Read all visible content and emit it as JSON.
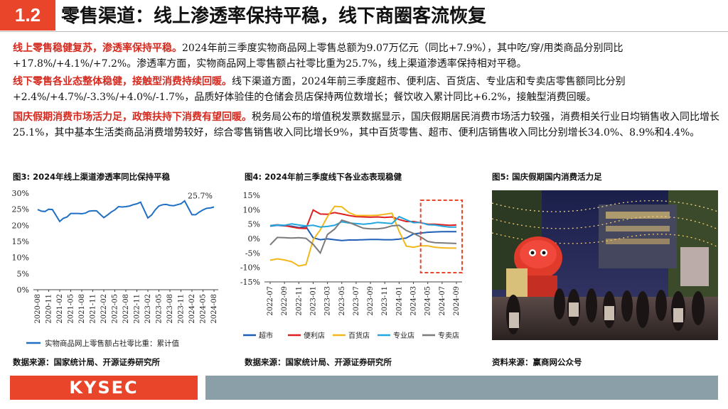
{
  "header": {
    "section_number": "1.2",
    "title": "零售渠道：线上渗透率保持平稳，线下商圈客流恢复"
  },
  "paragraphs": [
    {
      "lead": "线上零售稳健复苏，渗透率保持平稳。",
      "body": "2024年前三季度实物商品网上零售总额为9.07万亿元（同比+7.9%），其中吃/穿/用类商品分别同比+17.8%/+4.1%/+7.2%。渗透率方面，实物商品网上零售额占社零比重为25.7%，线上渠道渗透率保持相对平稳。"
    },
    {
      "lead": "线下零售各业态整体稳健，接触型消费持续回暖。",
      "body": "线下渠道方面，2024年前三季度超市、便利店、百货店、专业店和专卖店零售额同比分别+2.4%/+4.7%/-3.3%/+4.0%/-1.7%，品质好体验佳的仓储会员店保持两位数增长；餐饮收入累计同比+6.2%，接触型消费回暖。"
    },
    {
      "lead": "国庆假期消费市场活力足，政策扶持下消费有望回暖。",
      "body": "税务局公布的增值税发票数据显示，国庆假期居民消费市场活力较强，消费相关行业日均销售收入同比增长25.1%，其中基本生活类商品消费增势较好，综合零售销售收入同比增长9%，其中百货零售、超市、便利店销售收入同比分别增长34.0%、8.9%和4.4%。"
    }
  ],
  "figures": {
    "fig3_title": "图3:  2024年线上渠道渗透率同比保持平稳",
    "fig4_title": "图4:  2024年前三季度线下各业态表现稳健",
    "fig5_title": "图5:  国庆假期国内消费活力足",
    "fig3_source": "数据来源：国家统计局、开源证券研究所",
    "fig4_source": "数据来源：国家统计局、开源证券研究所",
    "fig5_source": "资料来源：赢商网公众号"
  },
  "footer": {
    "logo": "KYSEC"
  },
  "chart_data": [
    {
      "type": "line",
      "ylim": [
        0,
        30
      ],
      "yticks": [
        "0%",
        "5%",
        "10%",
        "15%",
        "20%",
        "25%",
        "30%"
      ],
      "xticks": [
        "2020-08",
        "2020-11",
        "2021-02",
        "2021-05",
        "2021-08",
        "2021-11",
        "2022-02",
        "2022-05",
        "2022-08",
        "2022-11",
        "2023-02",
        "2023-05",
        "2023-08",
        "2023-11",
        "2024-02",
        "2024-05",
        "2024-08"
      ],
      "x": [
        "2020-08",
        "2020-09",
        "2020-10",
        "2020-11",
        "2020-12",
        "2021-02",
        "2021-03",
        "2021-04",
        "2021-05",
        "2021-06",
        "2021-07",
        "2021-08",
        "2021-09",
        "2021-10",
        "2021-11",
        "2021-12",
        "2022-02",
        "2022-03",
        "2022-04",
        "2022-05",
        "2022-06",
        "2022-07",
        "2022-08",
        "2022-09",
        "2022-10",
        "2022-11",
        "2022-12",
        "2023-02",
        "2023-03",
        "2023-04",
        "2023-05",
        "2023-06",
        "2023-07",
        "2023-08",
        "2023-09",
        "2023-10",
        "2023-11",
        "2023-12",
        "2024-02",
        "2024-03",
        "2024-04",
        "2024-05",
        "2024-06",
        "2024-07",
        "2024-08"
      ],
      "series": [
        {
          "name": "实物商品网上零售额占社零比重：累计值",
          "color": "#1f6fc5",
          "values": [
            24.9,
            24.4,
            24.3,
            25.0,
            24.9,
            21.2,
            22.2,
            22.6,
            23.7,
            23.7,
            23.7,
            23.6,
            23.8,
            24.4,
            24.5,
            24.5,
            22.4,
            23.2,
            24.1,
            24.8,
            25.8,
            25.7,
            25.8,
            26.0,
            26.4,
            26.7,
            27.2,
            22.3,
            23.2,
            24.8,
            26.0,
            26.4,
            26.5,
            26.2,
            26.1,
            26.4,
            26.7,
            27.6,
            23.3,
            23.3,
            24.1,
            24.8,
            25.3,
            25.4,
            25.7
          ]
        }
      ],
      "annotation": "25.7%"
    },
    {
      "type": "line",
      "ylim": [
        -15,
        15
      ],
      "yticks": [
        "15%",
        "10%",
        "5%",
        "0%",
        "-5%",
        "-10%",
        "-15%"
      ],
      "xticks": [
        "2022-07",
        "2022-09",
        "2022-11",
        "2023-01",
        "2023-03",
        "2023-05",
        "2023-07",
        "2023-09",
        "2023-11",
        "2024-01",
        "2024-03",
        "2024-05",
        "2024-07",
        "2024-09"
      ],
      "x": [
        "2022-07",
        "2022-08",
        "2022-09",
        "2022-10",
        "2022-11",
        "2022-12",
        "2023-01",
        "2023-02",
        "2023-03",
        "2023-04",
        "2023-05",
        "2023-06",
        "2023-07",
        "2023-08",
        "2023-09",
        "2023-10",
        "2023-11",
        "2023-12",
        "2024-01",
        "2024-02",
        "2024-03",
        "2024-04",
        "2024-05",
        "2024-06",
        "2024-07",
        "2024-08",
        "2024-09"
      ],
      "series": [
        {
          "name": "超市",
          "color": "#1f5fb5",
          "values": [
            4.3,
            4.6,
            4.4,
            4.3,
            3.8,
            4.1,
            0.3,
            -0.4,
            -0.1,
            -0.4,
            -0.7,
            -0.5,
            -0.5,
            -0.4,
            -0.3,
            -0.3,
            -0.4,
            -0.4,
            -0.2,
            0.2,
            1.6,
            1.9,
            2.2,
            2.3,
            2.4,
            2.4,
            2.4
          ]
        },
        {
          "name": "便利店",
          "color": "#e02020",
          "values": [
            4.5,
            4.8,
            4.5,
            4.0,
            3.6,
            3.5,
            9.9,
            8.5,
            8.4,
            9.0,
            8.5,
            8.0,
            7.6,
            7.5,
            7.4,
            7.5,
            7.3,
            7.5,
            6.6,
            5.9,
            5.9,
            5.5,
            5.0,
            5.0,
            4.8,
            4.6,
            4.7
          ]
        },
        {
          "name": "百货店",
          "color": "#f2b81a",
          "values": [
            -7.5,
            -7.0,
            -7.4,
            -8.0,
            -9.5,
            -9.0,
            -0.4,
            3.0,
            7.6,
            11.2,
            11.0,
            9.0,
            8.0,
            8.0,
            8.0,
            8.1,
            8.4,
            8.8,
            2.5,
            -2.6,
            -3.0,
            -2.5,
            -2.5,
            -3.0,
            -3.2,
            -3.3,
            -3.3
          ]
        },
        {
          "name": "专业店",
          "color": "#22a6de",
          "values": [
            4.5,
            4.7,
            4.6,
            5.1,
            4.7,
            4.4,
            4.6,
            4.0,
            4.2,
            4.6,
            5.8,
            5.4,
            5.2,
            5.0,
            5.2,
            5.6,
            5.4,
            5.2,
            7.6,
            6.5,
            5.5,
            5.6,
            4.8,
            4.7,
            4.3,
            4.0,
            4.0
          ]
        },
        {
          "name": "专卖店",
          "color": "#7b7b7b",
          "values": [
            -2.2,
            0.4,
            0.3,
            0.2,
            0.3,
            0.1,
            -2.0,
            -5.0,
            1.4,
            3.3,
            6.4,
            5.6,
            4.6,
            3.6,
            3.4,
            3.4,
            3.7,
            4.4,
            4.6,
            2.8,
            1.8,
            0.6,
            -1.0,
            -1.4,
            -1.5,
            -1.6,
            -1.7
          ]
        }
      ]
    }
  ]
}
